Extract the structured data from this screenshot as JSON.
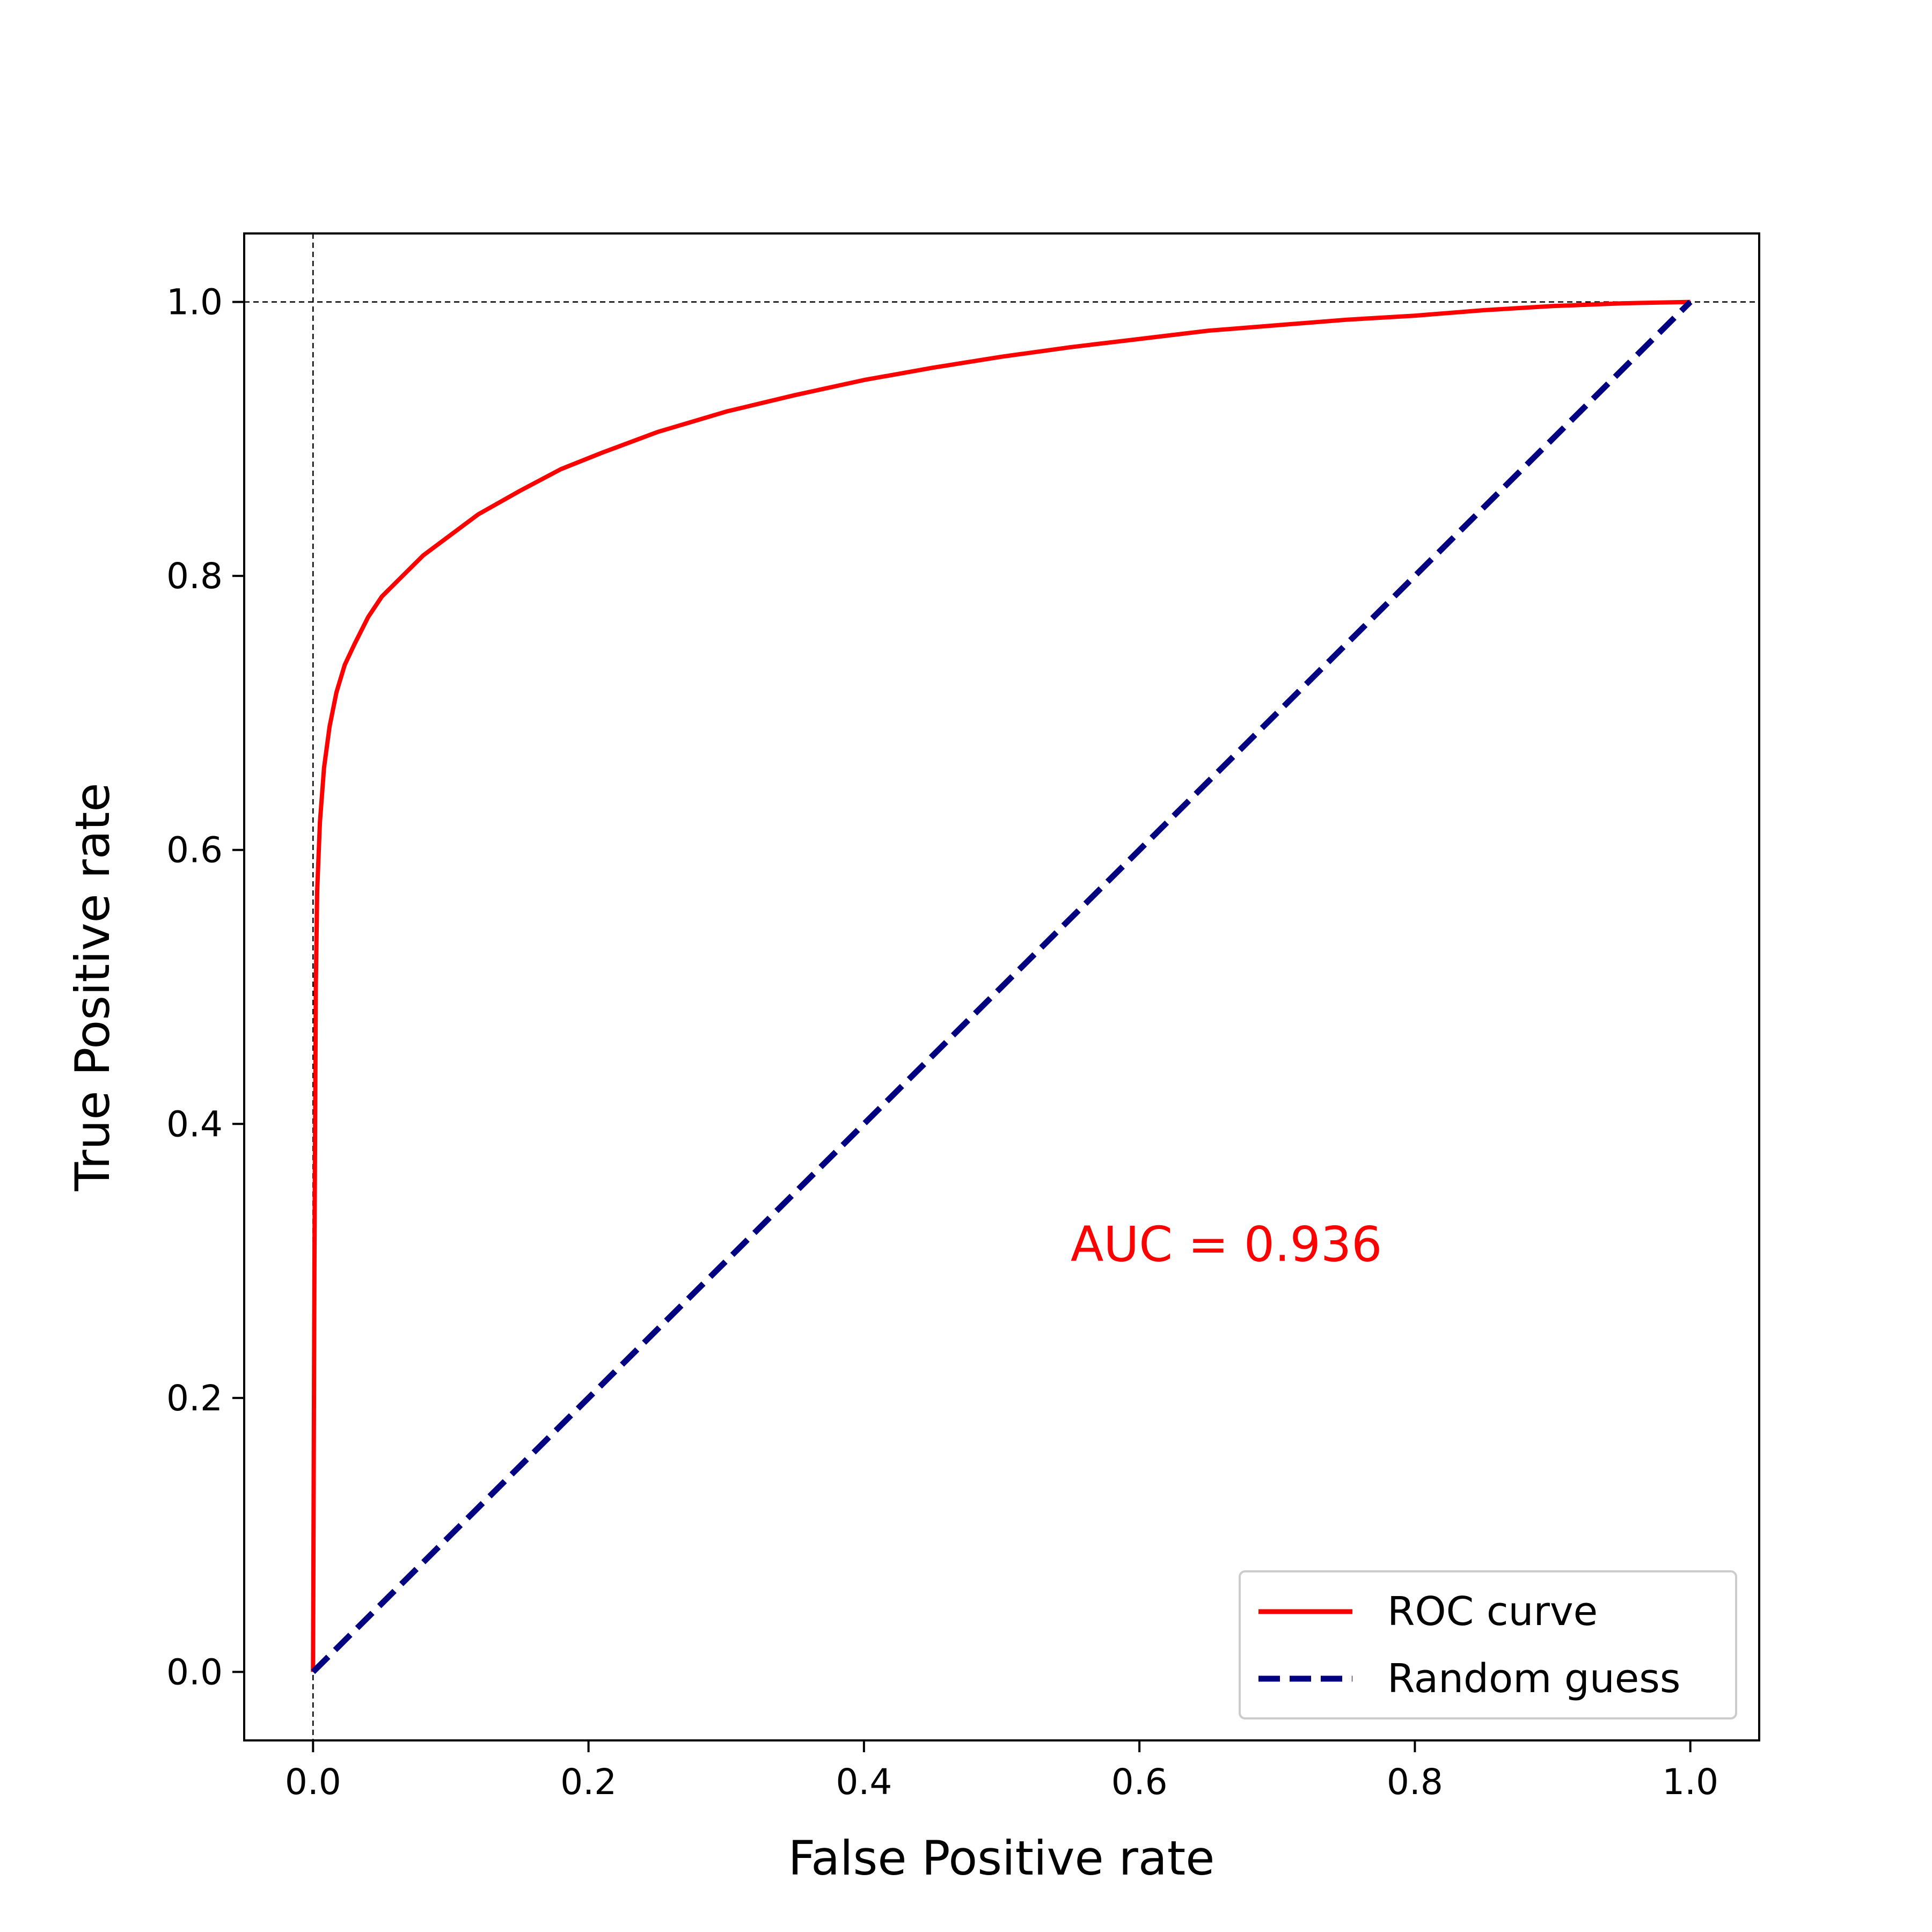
{
  "chart_data": {
    "type": "line",
    "xlabel": "False Positive rate",
    "ylabel": "True Positive rate",
    "xlim": [
      -0.05,
      1.05
    ],
    "ylim": [
      -0.05,
      1.05
    ],
    "x_ticks": [
      "0.0",
      "0.2",
      "0.4",
      "0.6",
      "0.8",
      "1.0"
    ],
    "y_ticks": [
      "0.0",
      "0.2",
      "0.4",
      "0.6",
      "0.8",
      "1.0"
    ],
    "grid": false,
    "reference_lines": {
      "x": 0,
      "y": 1,
      "style": "dashed",
      "color": "#000000"
    },
    "legend_position": "lower-right",
    "annotation": {
      "text": "AUC = 0.936",
      "x": 0.55,
      "y": 0.3,
      "color": "#ff0000"
    },
    "series": [
      {
        "name": "ROC curve",
        "color": "#ff0000",
        "style": "solid",
        "x": [
          0,
          0.001,
          0.002,
          0.003,
          0.005,
          0.008,
          0.012,
          0.017,
          0.023,
          0.03,
          0.04,
          0.05,
          0.065,
          0.08,
          0.1,
          0.12,
          0.15,
          0.18,
          0.21,
          0.25,
          0.3,
          0.35,
          0.4,
          0.45,
          0.5,
          0.55,
          0.6,
          0.65,
          0.7,
          0.75,
          0.8,
          0.85,
          0.9,
          0.95,
          1.0
        ],
        "y": [
          0,
          0.3,
          0.5,
          0.57,
          0.62,
          0.66,
          0.69,
          0.715,
          0.735,
          0.75,
          0.77,
          0.785,
          0.8,
          0.815,
          0.83,
          0.845,
          0.862,
          0.878,
          0.89,
          0.905,
          0.92,
          0.932,
          0.943,
          0.952,
          0.96,
          0.967,
          0.973,
          0.979,
          0.983,
          0.987,
          0.99,
          0.994,
          0.997,
          0.999,
          1.0
        ]
      },
      {
        "name": "Random guess",
        "color": "#000080",
        "style": "dashed",
        "x": [
          0,
          1
        ],
        "y": [
          0,
          1
        ]
      }
    ]
  }
}
